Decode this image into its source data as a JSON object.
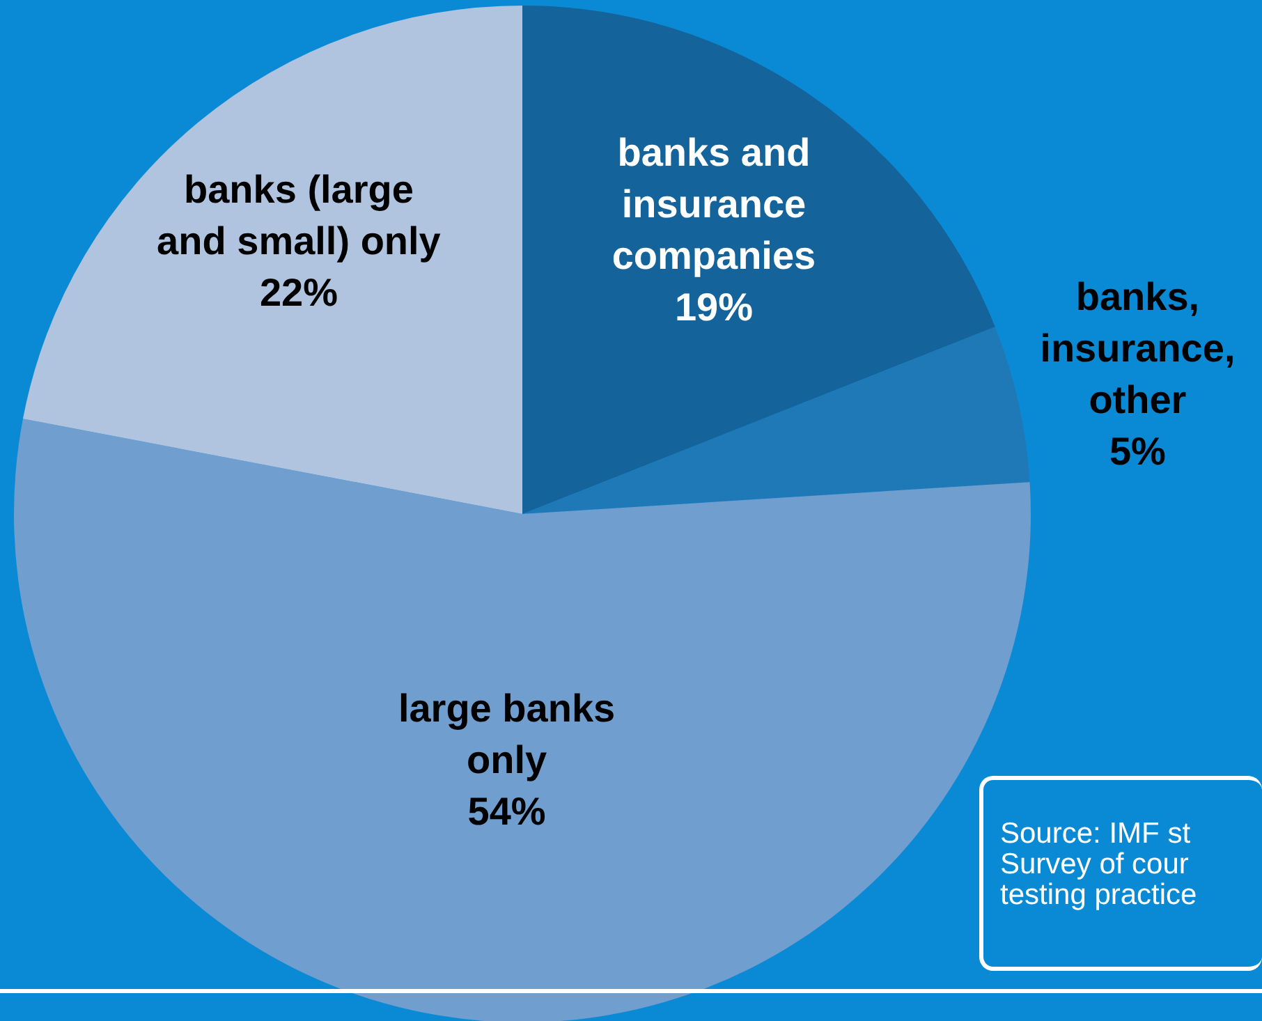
{
  "chart_data": {
    "type": "pie",
    "categories": [
      "banks and insurance companies",
      "banks, insurance, other",
      "large banks only",
      "banks (large and small) only"
    ],
    "values": [
      19,
      5,
      54,
      22
    ],
    "colors": [
      "#14639a",
      "#1f79b6",
      "#6f9ecf",
      "#b0c3df"
    ],
    "value_labels": [
      "19%",
      "5%",
      "54%",
      "22%"
    ],
    "legend": false,
    "annotations": [
      "Source: IMF st\nSurvey of cour\ntesting practice"
    ]
  }
}
